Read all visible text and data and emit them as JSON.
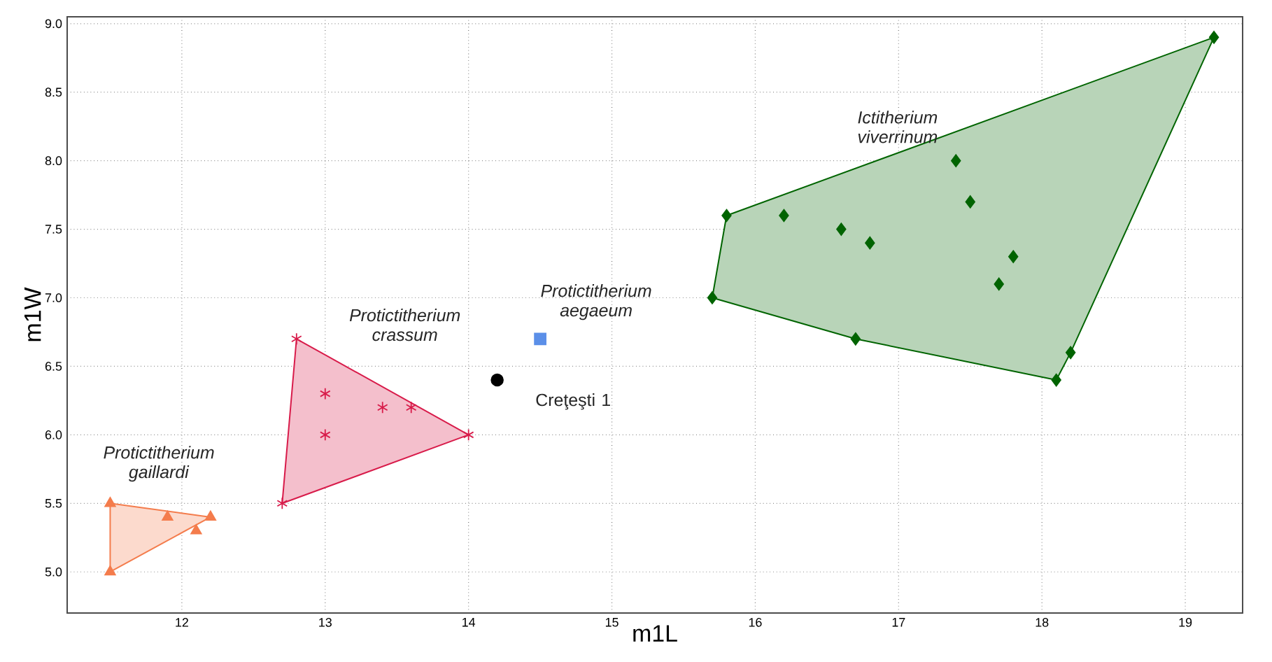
{
  "chart_data": {
    "type": "scatter",
    "xlabel": "m1L",
    "ylabel": "m1W",
    "xlim": [
      11.2,
      19.4
    ],
    "ylim": [
      4.7,
      9.05
    ],
    "xticks": [
      12,
      13,
      14,
      15,
      16,
      17,
      18,
      19
    ],
    "yticks": [
      {
        "value": 5.0,
        "label": "5.0"
      },
      {
        "value": 5.5,
        "label": "5.5"
      },
      {
        "value": 6.0,
        "label": "6.0"
      },
      {
        "value": 6.5,
        "label": "6.5"
      },
      {
        "value": 7.0,
        "label": "7.0"
      },
      {
        "value": 7.5,
        "label": "7.5"
      },
      {
        "value": 8.0,
        "label": "8.0"
      },
      {
        "value": 8.5,
        "label": "8.5"
      },
      {
        "value": 9.0,
        "label": "9.0"
      }
    ],
    "grid": true,
    "series": [
      {
        "type": "area",
        "color": "#f47c4c",
        "x": [
          11.5,
          11.5,
          12.2,
          11.5
        ],
        "values": [
          5.0,
          5.5,
          5.4,
          5.0
        ]
      },
      {
        "type": "area",
        "color": "#d81b4a",
        "x": [
          12.7,
          12.8,
          14.0,
          12.7
        ],
        "values": [
          5.5,
          6.7,
          6.0,
          5.5
        ]
      },
      {
        "type": "area",
        "color": "#006400",
        "x": [
          15.7,
          15.8,
          19.2,
          18.2,
          18.1,
          16.7,
          15.7
        ],
        "values": [
          7.0,
          7.6,
          8.9,
          6.6,
          6.4,
          6.7,
          7.0
        ]
      },
      {
        "name": "*Protictitherium gaillardi*",
        "marker": "triangle",
        "color": "#f47c4c",
        "x": [
          11.5,
          11.5,
          11.9,
          12.1,
          12.2
        ],
        "values": [
          5.5,
          5.0,
          5.4,
          5.3,
          5.4
        ]
      },
      {
        "name": "*Protictitherium crassum*",
        "marker": "cross",
        "color": "#d81b4a",
        "x": [
          12.8,
          12.7,
          14.0,
          13.0,
          13.0,
          13.4,
          13.6
        ],
        "values": [
          6.7,
          5.5,
          6.0,
          6.3,
          6.0,
          6.2,
          6.2
        ]
      },
      {
        "name": "*Protictitherium aegaeum*",
        "marker": "square",
        "color": "#5b8fe8",
        "x": [
          14.5
        ],
        "values": [
          6.7
        ]
      },
      {
        "name": "Creţeşti 1",
        "marker": "circle",
        "color": "#000000",
        "x": [
          14.2
        ],
        "values": [
          6.4
        ]
      },
      {
        "name": "*Ictitherium viverrinum*",
        "marker": "diamond",
        "color": "#006400",
        "x": [
          15.8,
          15.7,
          16.2,
          16.6,
          16.8,
          17.4,
          17.5,
          17.8,
          17.7,
          16.7,
          18.1,
          18.2,
          19.2
        ],
        "values": [
          7.6,
          7.0,
          7.6,
          7.5,
          7.4,
          8.0,
          7.7,
          7.3,
          7.1,
          6.7,
          6.4,
          6.6,
          8.9
        ]
      }
    ]
  }
}
